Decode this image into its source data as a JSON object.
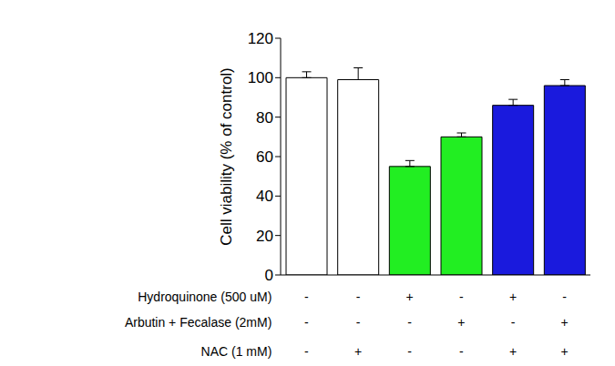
{
  "chart_data": {
    "type": "bar",
    "y_label": "Cell viability (% of control)",
    "categories": [
      null,
      null,
      null,
      null,
      null,
      null
    ],
    "values": [
      100,
      99,
      55,
      70,
      86,
      96
    ],
    "errors": [
      3,
      6,
      3,
      2,
      3,
      3
    ],
    "colors": [
      "#ffffff",
      "#ffffff",
      "#22ee22",
      "#22ee22",
      "#1a1add",
      "#1a1add"
    ],
    "ylim": [
      0,
      120
    ],
    "yticks": [
      0,
      20,
      40,
      60,
      80,
      100,
      120
    ],
    "treatments": [
      {
        "label": "Hydroquinone (500 uM)",
        "marks": [
          "-",
          "-",
          "+",
          "-",
          "+",
          "-"
        ]
      },
      {
        "label": "Arbutin + Fecalase (2mM)",
        "marks": [
          "-",
          "-",
          "-",
          "+",
          "-",
          "+"
        ]
      },
      {
        "label": "NAC (1 mM)",
        "marks": [
          "-",
          "+",
          "-",
          "-",
          "+",
          "+"
        ]
      }
    ]
  }
}
